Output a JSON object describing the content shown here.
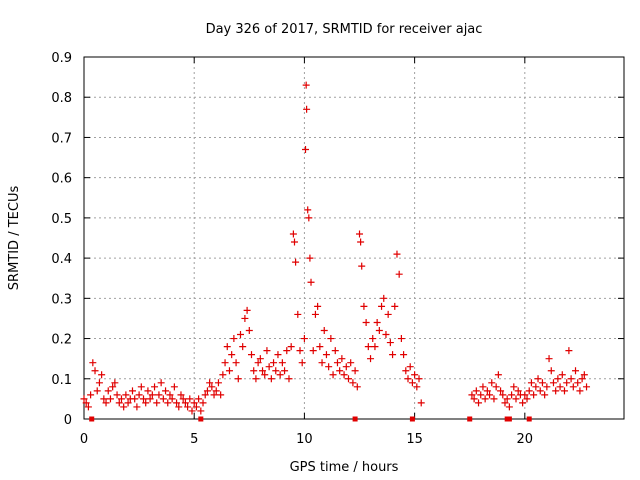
{
  "chart_data": {
    "type": "scatter",
    "title": "Day 326 of 2017, SRMTID for receiver ajac",
    "xlabel": "GPS time / hours",
    "ylabel": "SRMTID / TECUs",
    "xlim": [
      0,
      24.5
    ],
    "ylim": [
      0,
      0.9
    ],
    "xticks": [
      0,
      5,
      10,
      15,
      20
    ],
    "yticks": [
      0,
      0.1,
      0.2,
      0.3,
      0.4,
      0.5,
      0.6,
      0.7,
      0.8,
      0.9
    ],
    "grid": true,
    "marker": "+",
    "color": "#e00000",
    "series": [
      {
        "name": "SRMTID",
        "points": [
          [
            0.0,
            0.05
          ],
          [
            0.1,
            0.04
          ],
          [
            0.2,
            0.03
          ],
          [
            0.3,
            0.06
          ],
          [
            0.4,
            0.14
          ],
          [
            0.5,
            0.12
          ],
          [
            0.6,
            0.07
          ],
          [
            0.7,
            0.09
          ],
          [
            0.8,
            0.11
          ],
          [
            0.9,
            0.05
          ],
          [
            1.0,
            0.04
          ],
          [
            1.1,
            0.07
          ],
          [
            1.2,
            0.05
          ],
          [
            1.3,
            0.08
          ],
          [
            1.4,
            0.09
          ],
          [
            1.5,
            0.06
          ],
          [
            1.6,
            0.04
          ],
          [
            1.7,
            0.05
          ],
          [
            1.8,
            0.03
          ],
          [
            1.9,
            0.06
          ],
          [
            2.0,
            0.04
          ],
          [
            2.1,
            0.05
          ],
          [
            2.2,
            0.07
          ],
          [
            2.3,
            0.05
          ],
          [
            2.4,
            0.03
          ],
          [
            2.5,
            0.06
          ],
          [
            2.6,
            0.08
          ],
          [
            2.7,
            0.05
          ],
          [
            2.8,
            0.04
          ],
          [
            2.9,
            0.07
          ],
          [
            3.0,
            0.05
          ],
          [
            3.1,
            0.06
          ],
          [
            3.2,
            0.08
          ],
          [
            3.3,
            0.04
          ],
          [
            3.4,
            0.06
          ],
          [
            3.5,
            0.09
          ],
          [
            3.6,
            0.05
          ],
          [
            3.7,
            0.07
          ],
          [
            3.8,
            0.04
          ],
          [
            3.9,
            0.06
          ],
          [
            4.0,
            0.05
          ],
          [
            4.1,
            0.08
          ],
          [
            4.2,
            0.04
          ],
          [
            4.3,
            0.03
          ],
          [
            4.4,
            0.06
          ],
          [
            4.5,
            0.05
          ],
          [
            4.6,
            0.04
          ],
          [
            4.7,
            0.03
          ],
          [
            4.8,
            0.05
          ],
          [
            4.9,
            0.02
          ],
          [
            5.0,
            0.04
          ],
          [
            5.1,
            0.03
          ],
          [
            5.2,
            0.05
          ],
          [
            5.3,
            0.02
          ],
          [
            5.4,
            0.04
          ],
          [
            5.5,
            0.06
          ],
          [
            5.6,
            0.07
          ],
          [
            5.7,
            0.09
          ],
          [
            5.8,
            0.08
          ],
          [
            5.9,
            0.06
          ],
          [
            6.0,
            0.07
          ],
          [
            6.1,
            0.09
          ],
          [
            6.2,
            0.06
          ],
          [
            6.3,
            0.11
          ],
          [
            6.4,
            0.14
          ],
          [
            6.5,
            0.18
          ],
          [
            6.6,
            0.12
          ],
          [
            6.7,
            0.16
          ],
          [
            6.8,
            0.2
          ],
          [
            6.9,
            0.14
          ],
          [
            7.0,
            0.1
          ],
          [
            7.1,
            0.21
          ],
          [
            7.2,
            0.18
          ],
          [
            7.3,
            0.25
          ],
          [
            7.4,
            0.27
          ],
          [
            7.5,
            0.22
          ],
          [
            7.6,
            0.16
          ],
          [
            7.7,
            0.12
          ],
          [
            7.8,
            0.1
          ],
          [
            7.9,
            0.14
          ],
          [
            8.0,
            0.15
          ],
          [
            8.1,
            0.12
          ],
          [
            8.2,
            0.11
          ],
          [
            8.3,
            0.17
          ],
          [
            8.4,
            0.13
          ],
          [
            8.5,
            0.1
          ],
          [
            8.6,
            0.14
          ],
          [
            8.7,
            0.12
          ],
          [
            8.8,
            0.16
          ],
          [
            8.9,
            0.11
          ],
          [
            9.0,
            0.14
          ],
          [
            9.1,
            0.12
          ],
          [
            9.2,
            0.17
          ],
          [
            9.3,
            0.1
          ],
          [
            9.4,
            0.18
          ],
          [
            9.5,
            0.46
          ],
          [
            9.55,
            0.44
          ],
          [
            9.6,
            0.39
          ],
          [
            9.7,
            0.26
          ],
          [
            9.8,
            0.17
          ],
          [
            9.9,
            0.14
          ],
          [
            10.0,
            0.2
          ],
          [
            10.05,
            0.67
          ],
          [
            10.08,
            0.83
          ],
          [
            10.1,
            0.77
          ],
          [
            10.15,
            0.52
          ],
          [
            10.2,
            0.5
          ],
          [
            10.25,
            0.4
          ],
          [
            10.3,
            0.34
          ],
          [
            10.4,
            0.17
          ],
          [
            10.5,
            0.26
          ],
          [
            10.6,
            0.28
          ],
          [
            10.7,
            0.18
          ],
          [
            10.8,
            0.14
          ],
          [
            10.9,
            0.22
          ],
          [
            11.0,
            0.16
          ],
          [
            11.1,
            0.13
          ],
          [
            11.2,
            0.2
          ],
          [
            11.3,
            0.11
          ],
          [
            11.4,
            0.17
          ],
          [
            11.5,
            0.14
          ],
          [
            11.6,
            0.12
          ],
          [
            11.7,
            0.15
          ],
          [
            11.8,
            0.11
          ],
          [
            11.9,
            0.13
          ],
          [
            12.0,
            0.1
          ],
          [
            12.1,
            0.14
          ],
          [
            12.2,
            0.09
          ],
          [
            12.3,
            0.12
          ],
          [
            12.4,
            0.08
          ],
          [
            12.5,
            0.46
          ],
          [
            12.55,
            0.44
          ],
          [
            12.6,
            0.38
          ],
          [
            12.7,
            0.28
          ],
          [
            12.8,
            0.24
          ],
          [
            12.9,
            0.18
          ],
          [
            13.0,
            0.15
          ],
          [
            13.1,
            0.2
          ],
          [
            13.2,
            0.18
          ],
          [
            13.3,
            0.24
          ],
          [
            13.4,
            0.22
          ],
          [
            13.5,
            0.28
          ],
          [
            13.6,
            0.3
          ],
          [
            13.7,
            0.21
          ],
          [
            13.8,
            0.26
          ],
          [
            13.9,
            0.19
          ],
          [
            14.0,
            0.16
          ],
          [
            14.1,
            0.28
          ],
          [
            14.2,
            0.41
          ],
          [
            14.3,
            0.36
          ],
          [
            14.4,
            0.2
          ],
          [
            14.5,
            0.16
          ],
          [
            14.6,
            0.12
          ],
          [
            14.7,
            0.1
          ],
          [
            14.8,
            0.13
          ],
          [
            14.9,
            0.09
          ],
          [
            15.0,
            0.11
          ],
          [
            15.1,
            0.08
          ],
          [
            15.2,
            0.1
          ],
          [
            15.3,
            0.04
          ],
          [
            17.6,
            0.06
          ],
          [
            17.7,
            0.05
          ],
          [
            17.8,
            0.07
          ],
          [
            17.9,
            0.04
          ],
          [
            18.0,
            0.06
          ],
          [
            18.1,
            0.08
          ],
          [
            18.2,
            0.05
          ],
          [
            18.3,
            0.07
          ],
          [
            18.4,
            0.06
          ],
          [
            18.5,
            0.09
          ],
          [
            18.6,
            0.05
          ],
          [
            18.7,
            0.08
          ],
          [
            18.8,
            0.11
          ],
          [
            18.9,
            0.07
          ],
          [
            19.0,
            0.06
          ],
          [
            19.1,
            0.04
          ],
          [
            19.2,
            0.05
          ],
          [
            19.3,
            0.03
          ],
          [
            19.4,
            0.06
          ],
          [
            19.5,
            0.08
          ],
          [
            19.6,
            0.05
          ],
          [
            19.7,
            0.07
          ],
          [
            19.8,
            0.06
          ],
          [
            19.9,
            0.04
          ],
          [
            20.0,
            0.06
          ],
          [
            20.1,
            0.05
          ],
          [
            20.2,
            0.07
          ],
          [
            20.3,
            0.09
          ],
          [
            20.4,
            0.06
          ],
          [
            20.5,
            0.08
          ],
          [
            20.6,
            0.1
          ],
          [
            20.7,
            0.07
          ],
          [
            20.8,
            0.09
          ],
          [
            20.9,
            0.06
          ],
          [
            21.0,
            0.08
          ],
          [
            21.1,
            0.15
          ],
          [
            21.2,
            0.12
          ],
          [
            21.3,
            0.09
          ],
          [
            21.4,
            0.07
          ],
          [
            21.5,
            0.1
          ],
          [
            21.6,
            0.08
          ],
          [
            21.7,
            0.11
          ],
          [
            21.8,
            0.07
          ],
          [
            21.9,
            0.09
          ],
          [
            22.0,
            0.17
          ],
          [
            22.1,
            0.1
          ],
          [
            22.2,
            0.08
          ],
          [
            22.3,
            0.12
          ],
          [
            22.4,
            0.09
          ],
          [
            22.5,
            0.07
          ],
          [
            22.6,
            0.1
          ],
          [
            22.7,
            0.11
          ],
          [
            22.8,
            0.08
          ]
        ]
      },
      {
        "name": "baseline markers",
        "marker": "square",
        "points": [
          [
            0.35,
            0.0
          ],
          [
            5.3,
            0.0
          ],
          [
            12.3,
            0.0
          ],
          [
            14.9,
            0.0
          ],
          [
            17.5,
            0.0
          ],
          [
            19.2,
            0.0
          ],
          [
            19.3,
            0.0
          ],
          [
            20.2,
            0.0
          ]
        ]
      }
    ]
  }
}
